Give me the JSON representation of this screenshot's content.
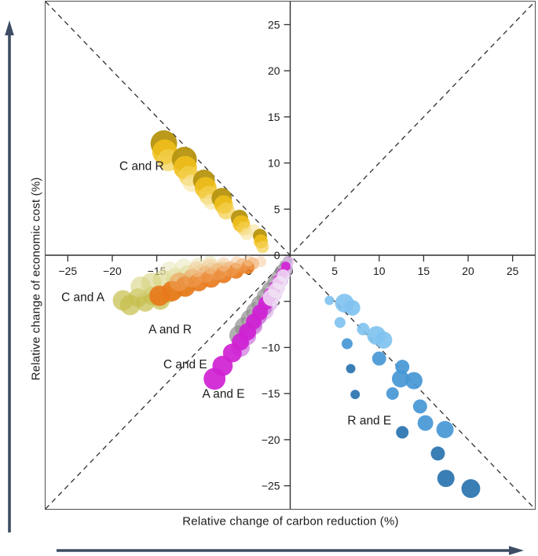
{
  "chart_data": {
    "type": "scatter",
    "title": "",
    "xlabel": "Relative change of carbon reduction (%)",
    "ylabel": "Relative change of economic cost (%)",
    "xlim": [
      -27.5,
      27.5
    ],
    "ylim": [
      -27.5,
      27.5
    ],
    "x_ticks": [
      -25,
      -20,
      -15,
      -10,
      -5,
      0,
      5,
      10,
      15,
      20,
      25
    ],
    "y_ticks": [
      25,
      20,
      15,
      10,
      5,
      0,
      -5,
      -10,
      -15,
      -20,
      -25
    ],
    "grid": false,
    "legend": "none",
    "diagonal_guides": "dashed X from corner to corner through origin",
    "axis_style": "spines crossing at zero inside outer frame",
    "colors": {
      "frame": "#4f4f4f",
      "axis": "#2e2e2e",
      "dashed": "#2e2e2e",
      "text": "#1b1b1b",
      "direction_arrows": "#3e4c64"
    },
    "palette": {
      "gold_dark": {
        "fill": "#b6930f",
        "opacity": 0.95
      },
      "gold": {
        "fill": "#f0bf1a",
        "opacity": 0.88
      },
      "gold_light": {
        "fill": "#f4d04f",
        "opacity": 0.72
      },
      "gold_pale": {
        "fill": "#f7e49c",
        "opacity": 0.62
      },
      "olive": {
        "fill": "#c6bf4e",
        "opacity": 0.72
      },
      "olive_light": {
        "fill": "#d6d37e",
        "opacity": 0.58
      },
      "olive_pale": {
        "fill": "#e8e6b2",
        "opacity": 0.5
      },
      "orange": {
        "fill": "#e8781a",
        "opacity": 0.9
      },
      "orange_light": {
        "fill": "#ef9f56",
        "opacity": 0.6
      },
      "orange_pale": {
        "fill": "#f5c594",
        "opacity": 0.5
      },
      "gray": {
        "fill": "#8f8f8f",
        "opacity": 0.7
      },
      "gray_light": {
        "fill": "#bcbcbc",
        "opacity": 0.55
      },
      "thistle": {
        "fill": "#dcb8e8",
        "opacity": 0.75
      },
      "plum_pale": {
        "fill": "#f0e2f5",
        "opacity": 0.85
      },
      "magenta": {
        "fill": "#cf22d2",
        "opacity": 0.92
      },
      "orchid": {
        "fill": "#c45ad8",
        "opacity": 0.6
      },
      "blue_light": {
        "fill": "#7ec2f0",
        "opacity": 0.9
      },
      "blue": {
        "fill": "#4697d6",
        "opacity": 0.92
      },
      "blue_dark": {
        "fill": "#2f77b2",
        "opacity": 0.95
      }
    },
    "series": [
      {
        "name": "C and R",
        "label": "C and R",
        "label_xy": [
          -16.7,
          9.7
        ],
        "points": [
          [
            -14.2,
            12.1,
            17,
            "gold_dark"
          ],
          [
            -14.1,
            11.2,
            16,
            "gold"
          ],
          [
            -13.7,
            10.3,
            14,
            "gold_light"
          ],
          [
            -11.9,
            10.4,
            16,
            "gold_dark"
          ],
          [
            -11.8,
            9.5,
            15,
            "gold"
          ],
          [
            -11.4,
            8.6,
            13,
            "gold_light"
          ],
          [
            -11.1,
            7.8,
            11,
            "gold_pale"
          ],
          [
            -9.7,
            8.1,
            14,
            "gold_dark"
          ],
          [
            -9.5,
            7.3,
            14,
            "gold"
          ],
          [
            -9.2,
            6.5,
            12,
            "gold_light"
          ],
          [
            -8.9,
            5.8,
            10,
            "gold_pale"
          ],
          [
            -7.7,
            6.2,
            13,
            "gold_dark"
          ],
          [
            -7.5,
            5.5,
            12,
            "gold"
          ],
          [
            -7.2,
            4.8,
            11,
            "gold_light"
          ],
          [
            -5.7,
            4.0,
            11,
            "gold_dark"
          ],
          [
            -5.5,
            3.4,
            11,
            "gold"
          ],
          [
            -5.2,
            2.9,
            9,
            "gold_light"
          ],
          [
            -4.9,
            2.3,
            8,
            "gold_pale"
          ],
          [
            -4.1,
            2.7,
            8,
            "gold_pale"
          ],
          [
            -3.4,
            2.1,
            9,
            "gold_dark"
          ],
          [
            -3.3,
            1.5,
            9,
            "gold"
          ],
          [
            -3.1,
            0.9,
            8,
            "gold_light"
          ]
        ]
      },
      {
        "name": "C and A",
        "label": "C and A",
        "label_xy": [
          -23.3,
          -4.5
        ],
        "points": [
          [
            -18.8,
            -4.9,
            13,
            "olive"
          ],
          [
            -18.0,
            -5.4,
            13,
            "olive"
          ],
          [
            -17.1,
            -4.6,
            12,
            "olive"
          ],
          [
            -16.3,
            -5.1,
            12,
            "olive"
          ],
          [
            -15.5,
            -4.4,
            12,
            "olive"
          ],
          [
            -14.6,
            -4.9,
            12,
            "olive"
          ],
          [
            -13.7,
            -4.2,
            11,
            "olive"
          ],
          [
            -12.9,
            -3.8,
            11,
            "olive"
          ],
          [
            -12.0,
            -3.5,
            11,
            "olive"
          ],
          [
            -16.8,
            -3.4,
            13,
            "olive_light"
          ],
          [
            -15.6,
            -3.0,
            13,
            "olive_light"
          ],
          [
            -14.3,
            -2.7,
            13,
            "olive_light"
          ],
          [
            -12.9,
            -2.4,
            12,
            "olive_light"
          ],
          [
            -11.5,
            -2.1,
            12,
            "olive_light"
          ],
          [
            -10.1,
            -1.9,
            11,
            "olive_light"
          ],
          [
            -8.8,
            -1.7,
            11,
            "olive_light"
          ],
          [
            -7.6,
            -1.5,
            10,
            "olive_light"
          ],
          [
            -13.6,
            -1.6,
            11,
            "olive_pale"
          ],
          [
            -12.0,
            -1.3,
            11,
            "olive_pale"
          ],
          [
            -10.4,
            -1.1,
            10,
            "olive_pale"
          ],
          [
            -9.0,
            -0.9,
            10,
            "olive_pale"
          ]
        ]
      },
      {
        "name": "A and R",
        "label": "A and R",
        "label_xy": [
          -13.5,
          -8.0
        ],
        "points": [
          [
            -14.7,
            -4.4,
            13,
            "orange"
          ],
          [
            -13.3,
            -3.9,
            13,
            "orange"
          ],
          [
            -11.8,
            -3.4,
            13,
            "orange"
          ],
          [
            -10.3,
            -2.9,
            12,
            "orange"
          ],
          [
            -8.9,
            -2.5,
            12,
            "orange"
          ],
          [
            -7.5,
            -2.1,
            11,
            "orange"
          ],
          [
            -6.1,
            -1.7,
            10,
            "orange"
          ],
          [
            -4.8,
            -1.3,
            9,
            "orange"
          ],
          [
            -12.5,
            -2.9,
            12,
            "orange_light"
          ],
          [
            -11.0,
            -2.5,
            12,
            "orange_light"
          ],
          [
            -9.5,
            -2.1,
            11,
            "orange_light"
          ],
          [
            -8.1,
            -1.8,
            11,
            "orange_light"
          ],
          [
            -6.7,
            -1.5,
            10,
            "orange_light"
          ],
          [
            -5.4,
            -1.1,
            9,
            "orange_light"
          ],
          [
            -4.2,
            -0.9,
            8,
            "orange_light"
          ],
          [
            -3.3,
            -0.7,
            7,
            "orange_pale"
          ],
          [
            -10.5,
            -1.5,
            10,
            "orange_pale"
          ],
          [
            -9.0,
            -1.2,
            10,
            "orange_pale"
          ],
          [
            -7.5,
            -1.0,
            9,
            "orange_pale"
          ],
          [
            -6.0,
            -0.8,
            8,
            "orange_pale"
          ],
          [
            -4.7,
            -0.6,
            7,
            "orange_pale"
          ]
        ]
      },
      {
        "name": "C and E",
        "label": "C and E",
        "label_xy": [
          -11.8,
          -11.8
        ],
        "points": [
          [
            -5.7,
            -8.7,
            13,
            "gray"
          ],
          [
            -5.1,
            -7.8,
            13,
            "gray"
          ],
          [
            -4.5,
            -6.9,
            12,
            "gray"
          ],
          [
            -3.9,
            -6.1,
            12,
            "gray"
          ],
          [
            -3.4,
            -5.3,
            11,
            "gray"
          ],
          [
            -2.8,
            -4.5,
            11,
            "gray"
          ],
          [
            -2.3,
            -3.7,
            10,
            "gray"
          ],
          [
            -1.8,
            -3.0,
            9,
            "gray"
          ],
          [
            -1.4,
            -2.3,
            8,
            "gray"
          ],
          [
            -1.0,
            -1.7,
            8,
            "gray"
          ],
          [
            -0.6,
            -1.1,
            7,
            "gray"
          ],
          [
            -0.3,
            -0.6,
            6,
            "gray"
          ],
          [
            -4.2,
            -7.4,
            12,
            "gray_light"
          ],
          [
            -3.6,
            -6.5,
            12,
            "gray_light"
          ],
          [
            -3.0,
            -5.6,
            11,
            "gray_light"
          ],
          [
            -2.5,
            -4.8,
            10,
            "gray_light"
          ],
          [
            -2.0,
            -4.0,
            10,
            "gray_light"
          ],
          [
            -1.5,
            -3.2,
            9,
            "gray_light"
          ],
          [
            -2.9,
            -6.0,
            12,
            "thistle"
          ],
          [
            -2.4,
            -5.1,
            12,
            "thistle"
          ],
          [
            -1.9,
            -4.2,
            11,
            "thistle"
          ],
          [
            -1.5,
            -3.5,
            10,
            "thistle"
          ],
          [
            -1.1,
            -2.7,
            10,
            "thistle"
          ],
          [
            -0.7,
            -2.0,
            9,
            "thistle"
          ],
          [
            -0.4,
            -1.3,
            8,
            "thistle"
          ],
          [
            -0.2,
            -0.7,
            7,
            "thistle"
          ]
        ]
      },
      {
        "name": "A and E",
        "label": "A and E",
        "label_xy": [
          -7.5,
          -15.0
        ],
        "points": [
          [
            -5.6,
            -10.0,
            12,
            "orchid"
          ],
          [
            -4.8,
            -8.8,
            11,
            "orchid"
          ],
          [
            -4.1,
            -7.7,
            11,
            "orchid"
          ],
          [
            -3.5,
            -6.7,
            10,
            "orchid"
          ],
          [
            -2.9,
            -5.7,
            10,
            "orchid"
          ],
          [
            -2.4,
            -4.8,
            9,
            "orchid"
          ],
          [
            -1.9,
            -4.0,
            8,
            "orchid"
          ],
          [
            -8.5,
            -13.4,
            14,
            "magenta"
          ],
          [
            -7.6,
            -12.0,
            13,
            "magenta"
          ],
          [
            -6.5,
            -10.6,
            12,
            "magenta"
          ],
          [
            -5.6,
            -9.4,
            11,
            "magenta"
          ],
          [
            -4.8,
            -8.3,
            11,
            "magenta"
          ],
          [
            -4.1,
            -7.2,
            10,
            "magenta"
          ],
          [
            -3.4,
            -6.2,
            10,
            "magenta"
          ],
          [
            -2.8,
            -5.2,
            9,
            "magenta"
          ],
          [
            -2.2,
            -4.3,
            9,
            "magenta"
          ],
          [
            -1.7,
            -3.5,
            8,
            "magenta"
          ],
          [
            -1.3,
            -2.7,
            7,
            "magenta"
          ],
          [
            -0.9,
            -2.0,
            7,
            "magenta"
          ],
          [
            -0.5,
            -1.2,
            6,
            "magenta"
          ],
          [
            -2.1,
            -4.6,
            11,
            "plum_pale"
          ],
          [
            -1.6,
            -3.8,
            10,
            "plum_pale"
          ],
          [
            -1.2,
            -3.0,
            9,
            "plum_pale"
          ],
          [
            -0.8,
            -2.2,
            8,
            "plum_pale"
          ]
        ]
      },
      {
        "name": "R and E",
        "label": "R and E",
        "label_xy": [
          8.9,
          -17.9
        ],
        "points": [
          [
            4.4,
            -4.9,
            6,
            "blue_light"
          ],
          [
            6.1,
            -5.2,
            12,
            "blue_light"
          ],
          [
            7.0,
            -5.7,
            10,
            "blue_light"
          ],
          [
            5.6,
            -7.3,
            7,
            "blue_light"
          ],
          [
            8.2,
            -8.0,
            8,
            "blue_light"
          ],
          [
            9.7,
            -8.7,
            12,
            "blue_light"
          ],
          [
            10.5,
            -9.2,
            11,
            "blue_light"
          ],
          [
            6.4,
            -9.6,
            7,
            "blue"
          ],
          [
            10.0,
            -11.2,
            9,
            "blue"
          ],
          [
            12.6,
            -12.1,
            9,
            "blue"
          ],
          [
            12.4,
            -13.4,
            11,
            "blue"
          ],
          [
            13.9,
            -13.6,
            11,
            "blue"
          ],
          [
            11.5,
            -15.0,
            8,
            "blue"
          ],
          [
            14.6,
            -16.4,
            9,
            "blue"
          ],
          [
            15.2,
            -18.2,
            10,
            "blue"
          ],
          [
            17.4,
            -18.9,
            11,
            "blue"
          ],
          [
            6.8,
            -12.3,
            6,
            "blue_dark"
          ],
          [
            7.3,
            -15.1,
            6,
            "blue_dark"
          ],
          [
            12.6,
            -19.2,
            8,
            "blue_dark"
          ],
          [
            16.6,
            -21.5,
            9,
            "blue_dark"
          ],
          [
            17.5,
            -24.2,
            11,
            "blue_dark"
          ],
          [
            20.3,
            -25.3,
            12,
            "blue_dark"
          ]
        ]
      }
    ]
  }
}
